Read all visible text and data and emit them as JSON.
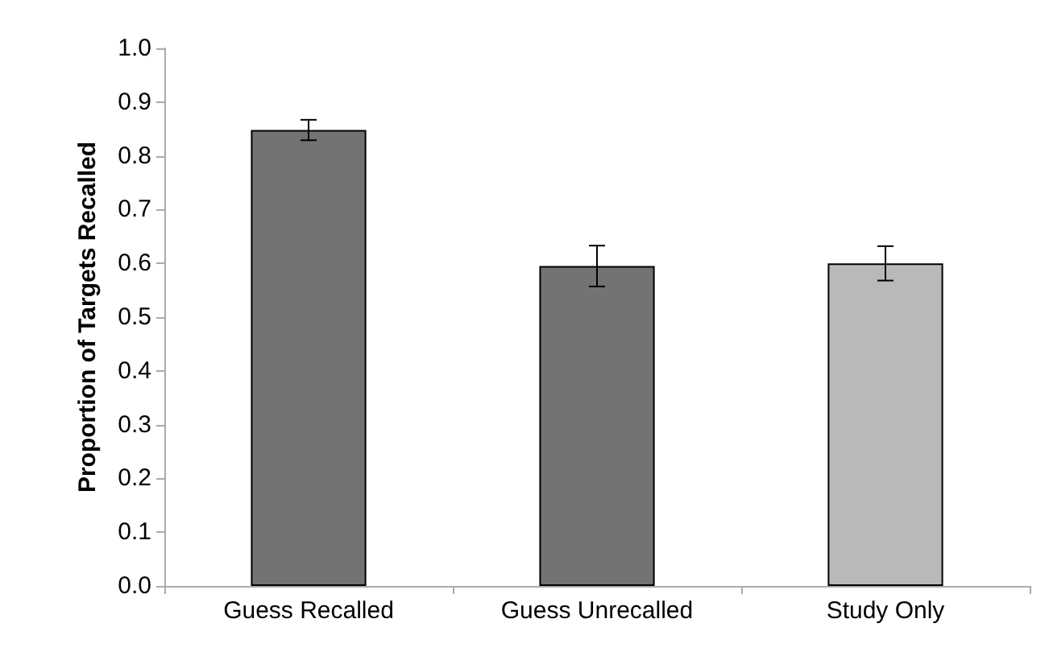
{
  "chart_data": {
    "type": "bar",
    "ylabel": "Proportion of Targets Recalled",
    "categories": [
      "Guess Recalled",
      "Guess Unrecalled",
      "Study Only"
    ],
    "values": [
      0.848,
      0.595,
      0.6
    ],
    "colors": [
      "#737373",
      "#737373",
      "#b9b9b9"
    ],
    "errors": [
      0.019,
      0.038,
      0.032
    ],
    "ylim": [
      0,
      1
    ],
    "yticks": [
      {
        "value": 0,
        "label": "0.0"
      },
      0.1,
      0.2,
      0.3,
      0.4,
      0.5,
      0.6,
      0.7,
      0.8,
      0.9,
      {
        "value": 1,
        "label": "1.0"
      }
    ],
    "grid": false
  }
}
